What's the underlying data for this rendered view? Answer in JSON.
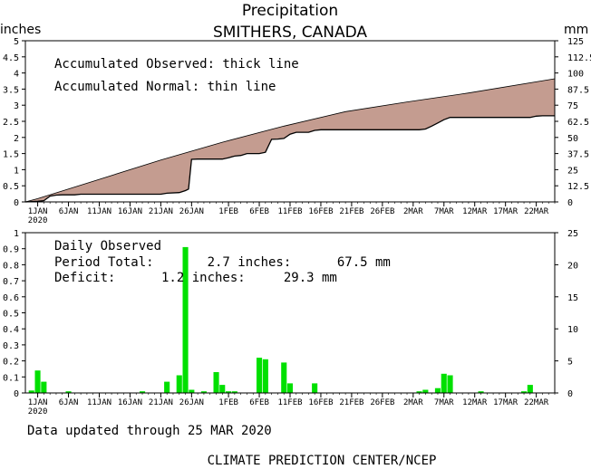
{
  "header": {
    "title": "Precipitation",
    "subtitle": "SMITHERS, CANADA",
    "left_unit": "inches",
    "right_unit": "mm"
  },
  "colors": {
    "deficit_fill": "#c49c90",
    "bar": "#00e000",
    "axis": "#000000"
  },
  "chart_data": [
    {
      "type": "area",
      "xlabel": "",
      "ylabel": "inches",
      "ylabel_right": "mm",
      "x_tick_labels": [
        "1JAN",
        "6JAN",
        "11JAN",
        "16JAN",
        "21JAN",
        "26JAN",
        "1FEB",
        "6FEB",
        "11FEB",
        "16FEB",
        "21FEB",
        "26FEB",
        "2MAR",
        "7MAR",
        "12MAR",
        "17MAR",
        "22MAR"
      ],
      "x_tick_sublabel": "2020",
      "ylim": [
        0,
        5
      ],
      "y_ticks": [
        "0",
        "0.5",
        "1",
        "1.5",
        "2",
        "2.5",
        "3",
        "3.5",
        "4",
        "4.5",
        "5"
      ],
      "ylim_right": [
        0,
        125
      ],
      "y_ticks_right": [
        "0",
        "12.5",
        "25",
        "37.5",
        "50",
        "62.5",
        "75",
        "87.5",
        "100",
        "112.5",
        "125"
      ],
      "legend": [
        "Accumulated Observed: thick line",
        "Accumulated Normal: thin line"
      ],
      "x_start_day": -2,
      "x_end_day": 84,
      "series": [
        {
          "name": "Accumulated Observed",
          "points": [
            [
              -2,
              0
            ],
            [
              0,
              0.02
            ],
            [
              1,
              0.04
            ],
            [
              2,
              0.18
            ],
            [
              3,
              0.21
            ],
            [
              4,
              0.22
            ],
            [
              6,
              0.22
            ],
            [
              7,
              0.24
            ],
            [
              8,
              0.24
            ],
            [
              20,
              0.24
            ],
            [
              21,
              0.27
            ],
            [
              23,
              0.29
            ],
            [
              24,
              0.35
            ],
            [
              24.5,
              0.4
            ],
            [
              25,
              1.32
            ],
            [
              26,
              1.33
            ],
            [
              30,
              1.33
            ],
            [
              31,
              1.37
            ],
            [
              32,
              1.42
            ],
            [
              33,
              1.44
            ],
            [
              34,
              1.5
            ],
            [
              36,
              1.5
            ],
            [
              37,
              1.54
            ],
            [
              38,
              1.94
            ],
            [
              39,
              1.95
            ],
            [
              40,
              1.97
            ],
            [
              41,
              2.1
            ],
            [
              42,
              2.16
            ],
            [
              44,
              2.16
            ],
            [
              45,
              2.22
            ],
            [
              46,
              2.24
            ],
            [
              47,
              2.24
            ],
            [
              62,
              2.24
            ],
            [
              63,
              2.26
            ],
            [
              64,
              2.35
            ],
            [
              65,
              2.45
            ],
            [
              66,
              2.55
            ],
            [
              67,
              2.62
            ],
            [
              76,
              2.62
            ],
            [
              80,
              2.62
            ],
            [
              81,
              2.66
            ],
            [
              82,
              2.67
            ],
            [
              84,
              2.67
            ]
          ]
        },
        {
          "name": "Accumulated Normal",
          "points": [
            [
              -2,
              0
            ],
            [
              0,
              0.1
            ],
            [
              10,
              0.7
            ],
            [
              20,
              1.3
            ],
            [
              30,
              1.85
            ],
            [
              40,
              2.35
            ],
            [
              50,
              2.8
            ],
            [
              60,
              3.1
            ],
            [
              70,
              3.38
            ],
            [
              84,
              3.82
            ]
          ]
        }
      ]
    },
    {
      "type": "bar",
      "xlabel": "",
      "ylabel": "inches",
      "ylabel_right": "mm",
      "x_tick_labels": [
        "1JAN",
        "6JAN",
        "11JAN",
        "16JAN",
        "21JAN",
        "26JAN",
        "1FEB",
        "6FEB",
        "11FEB",
        "16FEB",
        "21FEB",
        "26FEB",
        "2MAR",
        "7MAR",
        "12MAR",
        "17MAR",
        "22MAR"
      ],
      "x_tick_sublabel": "2020",
      "ylim": [
        0,
        1
      ],
      "y_ticks": [
        "0",
        "0.1",
        "0.2",
        "0.3",
        "0.4",
        "0.5",
        "0.6",
        "0.7",
        "0.8",
        "0.9",
        "1"
      ],
      "ylim_right": [
        0,
        25
      ],
      "y_ticks_right": [
        "0",
        "5",
        "10",
        "15",
        "20",
        "25"
      ],
      "annotations": {
        "label": "Daily Observed",
        "period_total": "Period Total:       2.7 inches:      67.5 mm",
        "deficit": "Deficit:      1.2 inches:     29.3 mm"
      },
      "days": [
        -1,
        0,
        1,
        5,
        17,
        21,
        23,
        24,
        25,
        27,
        29,
        30,
        31,
        32,
        36,
        37,
        40,
        41,
        45,
        62,
        63,
        65,
        66,
        67,
        72,
        79,
        80
      ],
      "values": [
        0.015,
        0.14,
        0.07,
        0.01,
        0.01,
        0.07,
        0.11,
        0.91,
        0.02,
        0.01,
        0.13,
        0.05,
        0.01,
        0.01,
        0.22,
        0.21,
        0.19,
        0.06,
        0.06,
        0.01,
        0.02,
        0.03,
        0.12,
        0.11,
        0.01,
        0.01,
        0.05
      ]
    }
  ],
  "footer": {
    "updated": "Data updated through 25 MAR 2020",
    "credit": "CLIMATE PREDICTION CENTER/NCEP"
  }
}
